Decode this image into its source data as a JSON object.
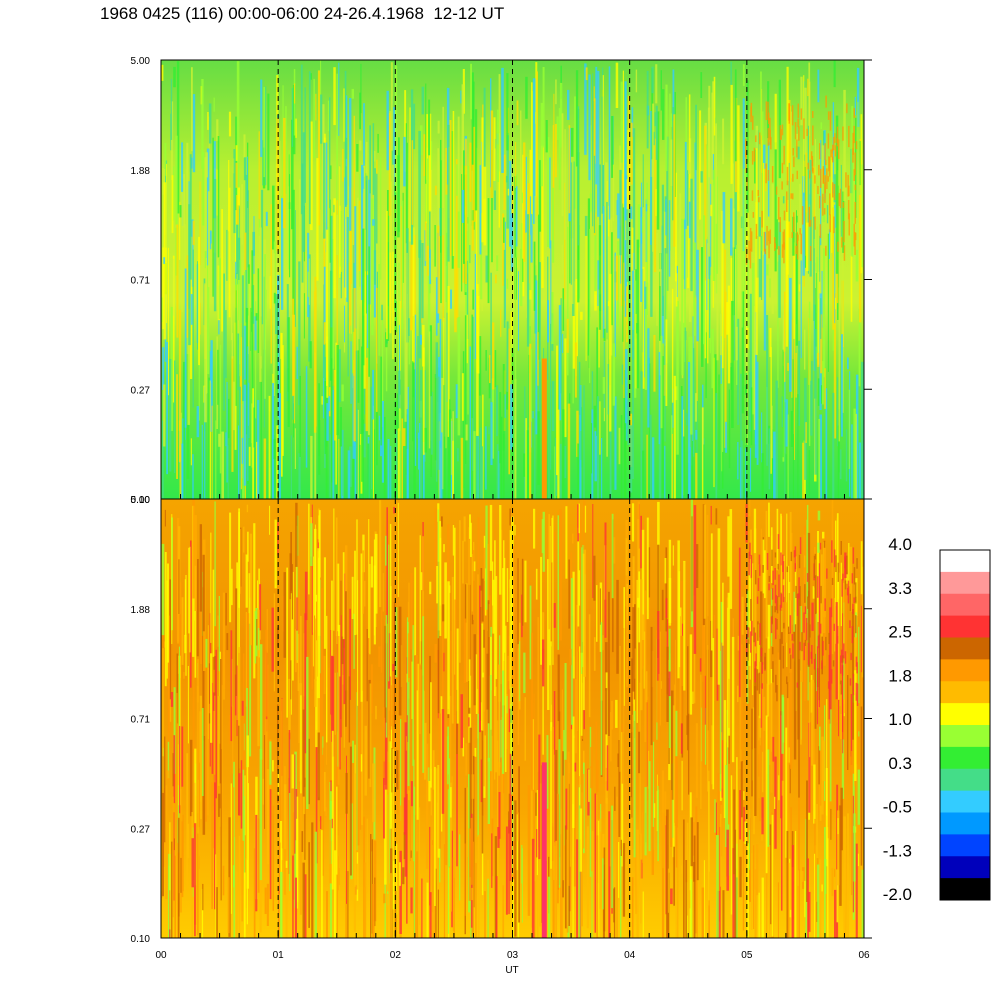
{
  "title": "1968 0425 (116) 00:00-06:00 24-26.4.1968  12-12 UT",
  "chart_data": [
    {
      "type": "heatmap",
      "panel": "upper",
      "x_range": [
        0,
        6
      ],
      "y_range": [
        0.1,
        5.0
      ],
      "y_scale": "log",
      "y_ticks": [
        "5.00",
        "1.88",
        "0.71",
        "0.27",
        "0.10"
      ],
      "x_ticks": [
        "00",
        "01",
        "02",
        "03",
        "04",
        "05",
        "06"
      ],
      "dominant_levels": "0.3 to 1.0"
    },
    {
      "type": "heatmap",
      "panel": "lower",
      "x_range": [
        0,
        6
      ],
      "y_range": [
        0.1,
        5.0
      ],
      "y_scale": "log",
      "y_ticks": [
        "5.00",
        "1.88",
        "0.71",
        "0.27",
        "0.10"
      ],
      "x_ticks": [
        "00",
        "01",
        "02",
        "03",
        "04",
        "05",
        "06"
      ],
      "xlabel": "UT",
      "dominant_levels": "1.0 to 2.5"
    }
  ],
  "colorbar": {
    "labels": [
      "4.0",
      "3.3",
      "2.5",
      "1.8",
      "1.0",
      "0.3",
      "-0.5",
      "-1.3",
      "-2.0"
    ],
    "colors": [
      "#ffffff",
      "#ff9999",
      "#ff6666",
      "#ff3333",
      "#cc6600",
      "#ff9900",
      "#ffbb00",
      "#ffff00",
      "#99ff33",
      "#33ee33",
      "#44dd88",
      "#33ccff",
      "#0099ff",
      "#0044ff",
      "#0000bb",
      "#000000"
    ]
  }
}
